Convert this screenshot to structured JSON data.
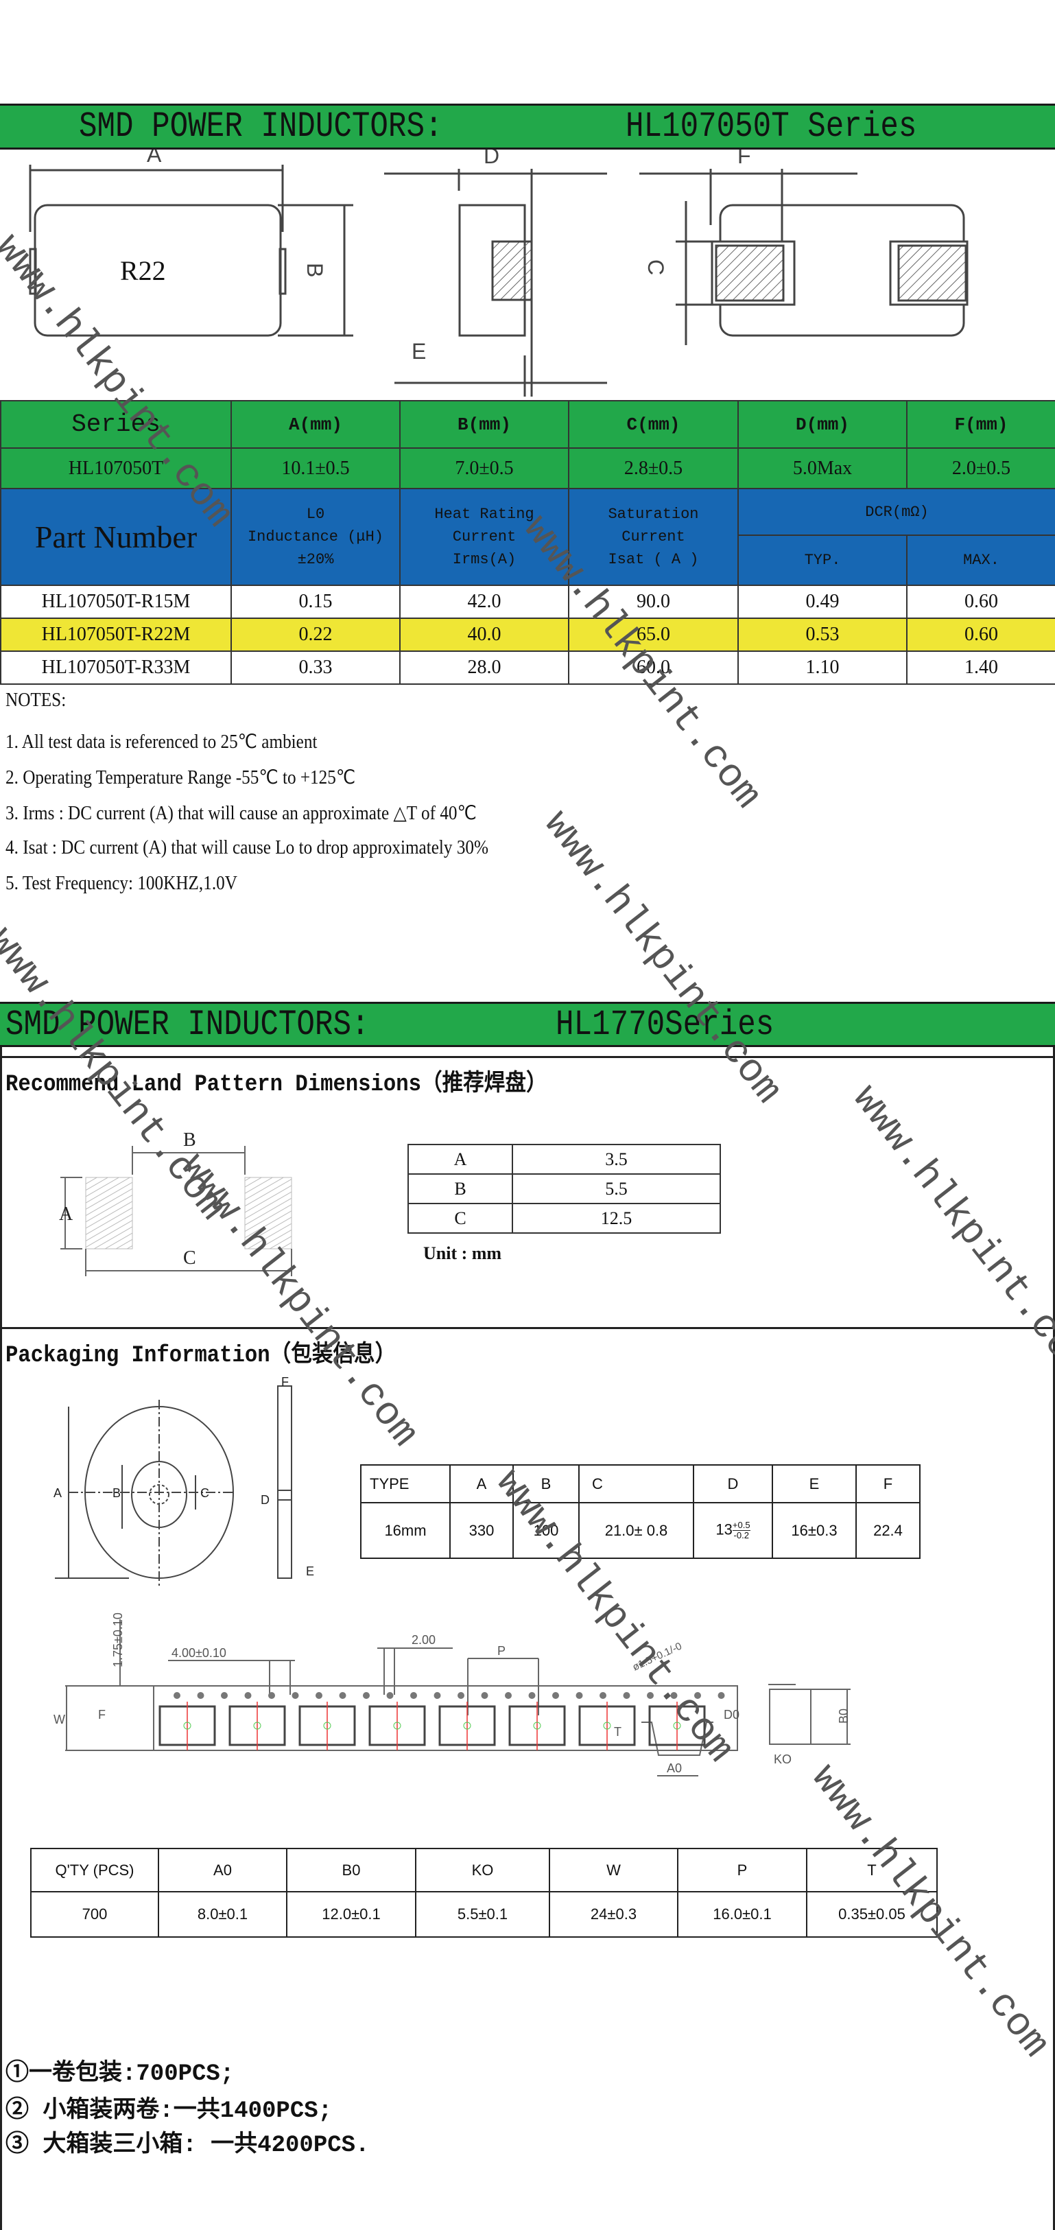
{
  "section1": {
    "title_left": "SMD POWER INDUCTORS:",
    "title_right": "HL107050T Series",
    "drawing": {
      "label_a": "A",
      "label_b": "B",
      "label_c": "C",
      "label_d": "D",
      "label_e": "E",
      "label_f": "F",
      "marking": "R22"
    },
    "dims": {
      "headers": [
        "Series",
        "A(mm)",
        "B(mm)",
        "C(mm)",
        "D(mm)",
        "F(mm)"
      ],
      "values": [
        "HL107050T",
        "10.1±0.5",
        "7.0±0.5",
        "2.8±0.5",
        "5.0Max",
        "2.0±0.5"
      ]
    },
    "spec": {
      "part_number": "Part Number",
      "inductance": [
        "L0",
        "Inductance (μH)",
        "±20%"
      ],
      "heat_rating": [
        "Heat Rating",
        "Current",
        "Irms(A)"
      ],
      "saturation": [
        "Saturation",
        "Current",
        "Isat ( A )"
      ],
      "dcr": "DCR(mΩ)",
      "typ": "TYP.",
      "max": "MAX.",
      "rows": [
        [
          "HL107050T-R15M",
          "0.15",
          "42.0",
          "90.0",
          "0.49",
          "0.60"
        ],
        [
          "HL107050T-R22M",
          "0.22",
          "40.0",
          "65.0",
          "0.53",
          "0.60"
        ],
        [
          "HL107050T-R33M",
          "0.33",
          "28.0",
          "60.0",
          "1.10",
          "1.40"
        ]
      ],
      "highlight_row": 1
    },
    "notes": {
      "heading": "NOTES:",
      "items": [
        "1. All test data is referenced to 25℃ ambient",
        "2. Operating Temperature Range -55℃ to +125℃",
        "3. Irms : DC current (A) that will cause an approximate △T of 40℃",
        "4. Isat : DC current (A) that will cause Lo to drop approximately 30%",
        "5. Test Frequency:  100KHZ,1.0V"
      ]
    }
  },
  "section2": {
    "title_left": "SMD POWER INDUCTORS:",
    "title_right": "HL1770Series",
    "land": {
      "heading": "Recommend Land Pattern Dimensions（推荐焊盘）",
      "label_a": "A",
      "label_b": "B",
      "label_c": "C",
      "rows": [
        [
          "A",
          "3.5"
        ],
        [
          "B",
          "5.5"
        ],
        [
          "C",
          "12.5"
        ]
      ],
      "unit": "Unit : mm"
    },
    "packaging": {
      "heading": "Packaging Information（包装信息）",
      "reel_labels": {
        "a": "A",
        "b": "B",
        "c": "C",
        "d": "D",
        "e": "E",
        "f": "F"
      },
      "reel_table": {
        "headers": [
          "TYPE",
          "A",
          "B",
          "C",
          "D",
          "E",
          "F"
        ],
        "values": [
          "16mm",
          "330",
          "100",
          "21.0± 0.8",
          "13",
          "16±0.3",
          "22.4"
        ],
        "d_tol_plus": "+0.5",
        "d_tol_minus": "-0.2"
      },
      "tape_labels": {
        "dim_175": "1.75±0.10",
        "dim_400": "4.00±0.10",
        "dim_200": "2.00",
        "p": "P",
        "hole": "ø1.5+0.1/-0",
        "w": "W",
        "f": "F",
        "d0": "D0",
        "b0": "B0",
        "k0": "KO",
        "t": "T",
        "a0": "A0"
      },
      "tape_table": {
        "headers": [
          "Q'TY (PCS)",
          "A0",
          "B0",
          "KO",
          "W",
          "P",
          "T"
        ],
        "values": [
          "700",
          "8.0±0.1",
          "12.0±0.1",
          "5.5±0.1",
          "24±0.3",
          "16.0±0.1",
          "0.35±0.05"
        ]
      }
    },
    "footer": [
      "①一卷包装:700PCS;",
      "② 小箱装两卷:一共1400PCS;",
      "③ 大箱装三小箱: 一共4200PCS."
    ]
  },
  "watermark": "www.hlkpint.com",
  "colors": {
    "title_green": "#22a84a",
    "header_blue": "#1767b3",
    "highlight_yellow": "#efe635"
  }
}
